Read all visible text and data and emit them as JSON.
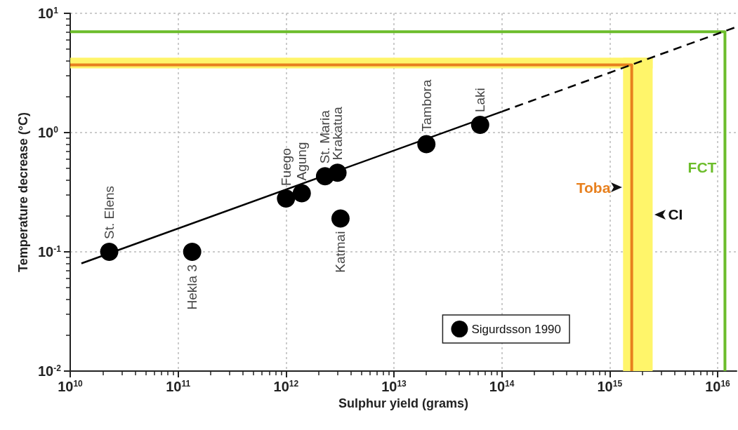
{
  "chart_data": {
    "type": "scatter",
    "xlabel": "Sulphur yield (grams)",
    "ylabel": "Temperature decrease (°C)",
    "log": "xy",
    "grid": true,
    "legend": "bottom right",
    "xlim": [
      10000000000.0,
      1.5e+16
    ],
    "ylim": [
      0.01,
      10
    ],
    "xticks": [
      {
        "value": 10000000000.0,
        "label": "10$^{10}$"
      },
      {
        "value": 100000000000.0,
        "label": "10$^{11}$"
      },
      {
        "value": 1000000000000.0,
        "label": "10$^{12}$"
      },
      {
        "value": 10000000000000.0,
        "label": "10$^{13}$"
      },
      {
        "value": 100000000000000.0,
        "label": "10$^{14}$"
      },
      {
        "value": 1000000000000000.0,
        "label": "10$^{15}$"
      },
      {
        "value": 1e+16,
        "label": "10$^{16}$"
      }
    ],
    "yticks": [
      {
        "value": 0.01,
        "label": "10$^{-2}$"
      },
      {
        "value": 0.1,
        "label": "10$^{-1}$"
      },
      {
        "value": 1,
        "label": "10$^{0}$"
      },
      {
        "value": 10,
        "label": "10$^{1}$"
      }
    ],
    "series": [
      {
        "name": "Sigurdsson 1990",
        "marker": "circle",
        "color": "#000000",
        "x": [
          23000000000.0,
          135000000000.0,
          1000000000000.0,
          1400000000000.0,
          2300000000000.0,
          3000000000000.0,
          3200000000000.0,
          20000000000000.0,
          63000000000000.0
        ],
        "values": [
          0.1,
          0.1,
          0.28,
          0.31,
          0.43,
          0.46,
          0.19,
          0.8,
          1.16
        ]
      },
      {
        "type": "line",
        "color": "#000000",
        "line_style": "solid",
        "x": [
          12700000000.0,
          100000000000000.0
        ],
        "values": [
          0.08,
          1.5
        ]
      },
      {
        "type": "line",
        "color": "#000000",
        "line_style": "dashed",
        "x": [
          100000000000000.0,
          1.5e+16
        ],
        "values": [
          1.5,
          7.7
        ]
      },
      {
        "name": "FCT",
        "type": "line",
        "color": "#6cbd2b",
        "line_style": "solid",
        "x": [
          10000000000.0,
          1.17e+16,
          1.17e+16
        ],
        "values": [
          7.0,
          7.0,
          0.01
        ]
      },
      {
        "name": "Toba",
        "type": "line",
        "color": "#e8801e",
        "line_style": "solid",
        "x": [
          10000000000.0,
          1600000000000000.0,
          1600000000000000.0
        ],
        "values": [
          3.7,
          3.7,
          0.01
        ]
      }
    ],
    "bands": [
      {
        "axis": "x",
        "from": 1330000000000000.0,
        "to": 2500000000000000.0,
        "label": "CI",
        "color": "#fff56a"
      },
      {
        "axis": "y",
        "from": 3.45,
        "to": 4.24,
        "color": "#fff56a"
      }
    ],
    "annotations": [
      {
        "text": "St. Elens",
        "x": 23000000000.0,
        "y": 0.1
      },
      {
        "text": "Hekla 3",
        "x": 135000000000.0,
        "y": 0.1
      },
      {
        "text": "Fuego",
        "x": 1000000000000.0,
        "y": 0.28
      },
      {
        "text": "Agung",
        "x": 1400000000000.0,
        "y": 0.31
      },
      {
        "text": "St. Maria",
        "x": 2300000000000.0,
        "y": 0.43
      },
      {
        "text": "Krakatua",
        "x": 3000000000000.0,
        "y": 0.46
      },
      {
        "text": "Katmai",
        "x": 3200000000000.0,
        "y": 0.19
      },
      {
        "text": "Tambora",
        "x": 20000000000000.0,
        "y": 0.8
      },
      {
        "text": "Laki",
        "x": 63000000000000.0,
        "y": 1.16
      }
    ]
  }
}
